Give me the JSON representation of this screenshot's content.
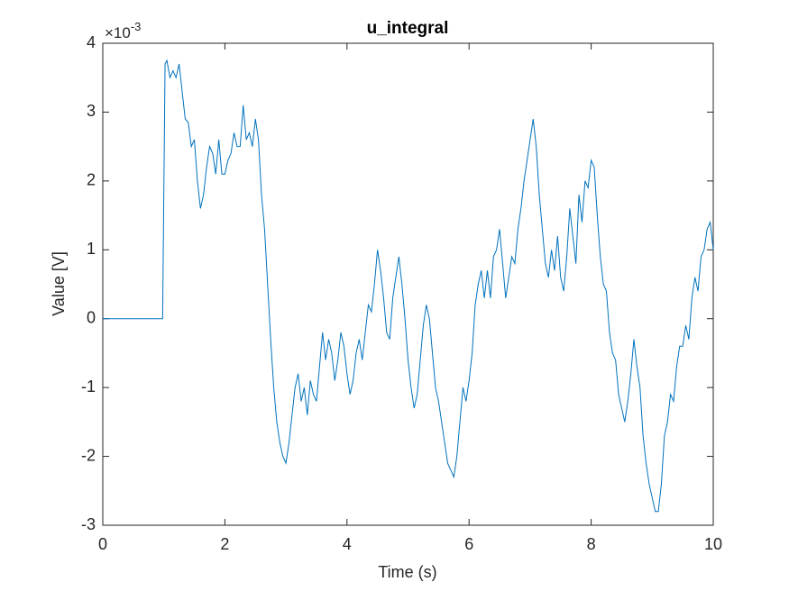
{
  "chart_data": {
    "type": "line",
    "title": "u_integral",
    "x_label": "Time (s)",
    "y_label": "Value [V]",
    "y_exponent_base": "×10",
    "y_exponent_power": "-3",
    "xlim": [
      0,
      10
    ],
    "ylim": [
      -3,
      4
    ],
    "xticks": [
      0,
      2,
      4,
      6,
      8,
      10
    ],
    "yticks": [
      -3,
      -2,
      -1,
      0,
      1,
      2,
      3,
      4
    ],
    "grid": false,
    "x": [
      0,
      0.98,
      1.02,
      1.05,
      1.1,
      1.15,
      1.2,
      1.25,
      1.3,
      1.35,
      1.4,
      1.45,
      1.5,
      1.55,
      1.6,
      1.65,
      1.7,
      1.75,
      1.8,
      1.85,
      1.9,
      1.95,
      2.0,
      2.05,
      2.1,
      2.15,
      2.2,
      2.25,
      2.3,
      2.35,
      2.4,
      2.45,
      2.5,
      2.55,
      2.6,
      2.65,
      2.7,
      2.75,
      2.8,
      2.85,
      2.9,
      2.95,
      3.0,
      3.05,
      3.1,
      3.15,
      3.2,
      3.25,
      3.3,
      3.35,
      3.4,
      3.45,
      3.5,
      3.55,
      3.6,
      3.65,
      3.7,
      3.75,
      3.8,
      3.85,
      3.9,
      3.95,
      4.0,
      4.05,
      4.1,
      4.15,
      4.2,
      4.25,
      4.3,
      4.35,
      4.4,
      4.45,
      4.5,
      4.55,
      4.6,
      4.65,
      4.7,
      4.75,
      4.8,
      4.85,
      4.9,
      4.95,
      5.0,
      5.05,
      5.1,
      5.15,
      5.2,
      5.25,
      5.3,
      5.35,
      5.4,
      5.45,
      5.5,
      5.55,
      5.6,
      5.65,
      5.7,
      5.75,
      5.8,
      5.85,
      5.9,
      5.95,
      6.0,
      6.05,
      6.1,
      6.15,
      6.2,
      6.25,
      6.3,
      6.35,
      6.4,
      6.45,
      6.5,
      6.55,
      6.6,
      6.65,
      6.7,
      6.75,
      6.8,
      6.85,
      6.9,
      6.95,
      7.0,
      7.05,
      7.1,
      7.15,
      7.2,
      7.25,
      7.3,
      7.35,
      7.4,
      7.45,
      7.5,
      7.55,
      7.6,
      7.65,
      7.7,
      7.75,
      7.8,
      7.85,
      7.9,
      7.95,
      8.0,
      8.05,
      8.1,
      8.15,
      8.2,
      8.25,
      8.3,
      8.35,
      8.4,
      8.45,
      8.5,
      8.55,
      8.6,
      8.65,
      8.7,
      8.75,
      8.8,
      8.85,
      8.9,
      8.95,
      9.0,
      9.05,
      9.1,
      9.15,
      9.2,
      9.25,
      9.3,
      9.35,
      9.4,
      9.45,
      9.5,
      9.55,
      9.6,
      9.65,
      9.7,
      9.75,
      9.8,
      9.85,
      9.9,
      9.95,
      10
    ],
    "series": [
      {
        "color": "#0072bd",
        "values": [
          0,
          0,
          3.7,
          3.75,
          3.5,
          3.6,
          3.5,
          3.7,
          3.3,
          2.9,
          2.85,
          2.5,
          2.6,
          2.0,
          1.6,
          1.8,
          2.2,
          2.5,
          2.4,
          2.1,
          2.6,
          2.1,
          2.1,
          2.3,
          2.4,
          2.7,
          2.5,
          2.5,
          3.1,
          2.6,
          2.7,
          2.5,
          2.9,
          2.6,
          1.8,
          1.3,
          0.5,
          -0.3,
          -1.0,
          -1.5,
          -1.8,
          -2.0,
          -2.1,
          -1.8,
          -1.4,
          -1.0,
          -0.8,
          -1.2,
          -1.0,
          -1.4,
          -0.9,
          -1.1,
          -1.2,
          -0.7,
          -0.2,
          -0.6,
          -0.3,
          -0.5,
          -0.9,
          -0.6,
          -0.2,
          -0.4,
          -0.8,
          -1.1,
          -0.9,
          -0.5,
          -0.3,
          -0.6,
          -0.2,
          0.2,
          0.1,
          0.5,
          1.0,
          0.7,
          0.3,
          -0.2,
          -0.3,
          0.3,
          0.6,
          0.9,
          0.5,
          0,
          -0.6,
          -1.0,
          -1.3,
          -1.1,
          -0.6,
          -0.1,
          0.2,
          0.0,
          -0.5,
          -1.0,
          -1.2,
          -1.5,
          -1.8,
          -2.1,
          -2.2,
          -2.3,
          -2.0,
          -1.5,
          -1.0,
          -1.2,
          -0.9,
          -0.5,
          0.2,
          0.5,
          0.7,
          0.3,
          0.7,
          0.3,
          0.9,
          1.0,
          1.3,
          0.8,
          0.3,
          0.6,
          0.9,
          0.8,
          1.3,
          1.6,
          2.0,
          2.3,
          2.6,
          2.9,
          2.5,
          1.8,
          1.3,
          0.8,
          0.6,
          1.0,
          0.7,
          1.2,
          0.6,
          0.4,
          0.9,
          1.6,
          1.2,
          0.8,
          1.8,
          1.4,
          2.0,
          1.9,
          2.3,
          2.2,
          1.5,
          0.9,
          0.5,
          0.4,
          -0.2,
          -0.5,
          -0.6,
          -1.1,
          -1.3,
          -1.5,
          -1.2,
          -0.8,
          -0.3,
          -0.7,
          -1.0,
          -1.7,
          -2.1,
          -2.4,
          -2.6,
          -2.8,
          -2.8,
          -2.4,
          -1.7,
          -1.5,
          -1.1,
          -1.2,
          -0.7,
          -0.4,
          -0.4,
          -0.1,
          -0.3,
          0.3,
          0.6,
          0.4,
          0.9,
          1.0,
          1.3,
          1.4,
          1.0
        ]
      }
    ]
  }
}
